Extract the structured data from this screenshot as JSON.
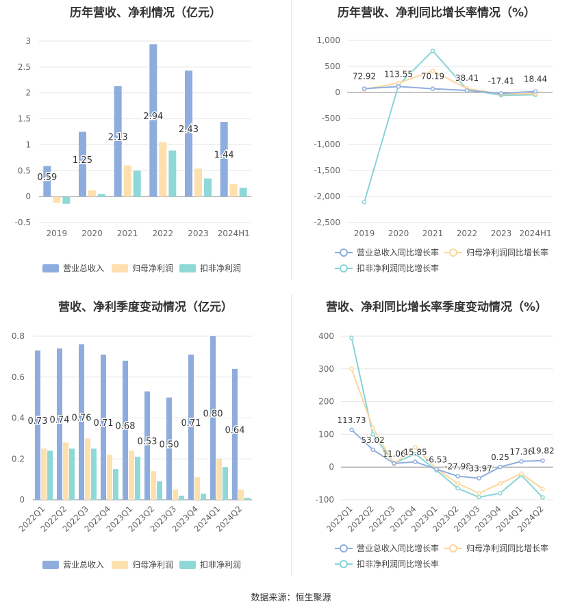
{
  "source_text": "数据来源：恒生聚源",
  "colors": {
    "revenue": "#8eadde",
    "net": "#fde0ae",
    "deduct": "#8fd8d8",
    "revenue_line": "#8eadde",
    "net_line": "#fdd69a",
    "deduct_line": "#86d4d4"
  },
  "chart_data": [
    {
      "type": "bar",
      "title": "历年营收、净利情况（亿元）",
      "categories": [
        "2019",
        "2020",
        "2021",
        "2022",
        "2023",
        "2024H1"
      ],
      "ylim": [
        -0.5,
        3
      ],
      "yticks": [
        "-0.5",
        "0",
        "0.5",
        "1",
        "1.5",
        "2",
        "2.5",
        "3"
      ],
      "series": [
        {
          "name": "营业总收入",
          "values": [
            0.59,
            1.25,
            2.13,
            2.94,
            2.43,
            1.44
          ],
          "labels": [
            "0.59",
            "1.25",
            "2.13",
            "2.94",
            "2.43",
            "1.44"
          ]
        },
        {
          "name": "归母净利润",
          "values": [
            -0.12,
            0.12,
            0.6,
            1.05,
            0.54,
            0.24
          ]
        },
        {
          "name": "扣非净利润",
          "values": [
            -0.14,
            0.05,
            0.5,
            0.89,
            0.35,
            0.17
          ]
        }
      ],
      "legend": "bottom",
      "grid": true
    },
    {
      "type": "line",
      "title": "历年营收、净利同比增长率情况（%）",
      "categories": [
        "2019",
        "2020",
        "2021",
        "2022",
        "2023",
        "2024H1"
      ],
      "ylim": [
        -2500,
        1000
      ],
      "yticks": [
        "-2,500",
        "-2,000",
        "-1,500",
        "-1,000",
        "-500",
        "0",
        "500",
        "1,000"
      ],
      "series": [
        {
          "name": "营业总收入同比增长率",
          "values": [
            72.92,
            113.55,
            70.19,
            38.41,
            -17.41,
            18.44
          ],
          "labels": [
            "72.92",
            "113.55",
            "70.19",
            "38.41",
            "-17.41",
            "18.44"
          ]
        },
        {
          "name": "归母净利润同比增长率",
          "values": [
            60,
            180,
            415,
            75,
            -30,
            -25
          ]
        },
        {
          "name": "扣非净利润同比增长率",
          "values": [
            -2110,
            140,
            800,
            55,
            -55,
            -45
          ]
        }
      ],
      "legend": "bottom",
      "grid": true
    },
    {
      "type": "bar",
      "title": "营收、净利季度变动情况（亿元）",
      "categories": [
        "2022Q1",
        "2022Q2",
        "2022Q3",
        "2022Q4",
        "2023Q1",
        "2023Q2",
        "2023Q3",
        "2023Q4",
        "2024Q1",
        "2024Q2"
      ],
      "ylim": [
        0,
        0.8
      ],
      "yticks": [
        "0",
        "0.2",
        "0.4",
        "0.6",
        "0.8"
      ],
      "series": [
        {
          "name": "营业总收入",
          "values": [
            0.73,
            0.74,
            0.76,
            0.71,
            0.68,
            0.53,
            0.5,
            0.71,
            0.8,
            0.64
          ],
          "labels": [
            "0.73",
            "0.74",
            "0.76",
            "0.71",
            "0.68",
            "0.53",
            "0.50",
            "0.71",
            "0.80",
            "0.64"
          ]
        },
        {
          "name": "归母净利润",
          "values": [
            0.25,
            0.28,
            0.3,
            0.22,
            0.24,
            0.14,
            0.05,
            0.11,
            0.2,
            0.05
          ]
        },
        {
          "name": "扣非净利润",
          "values": [
            0.24,
            0.25,
            0.25,
            0.15,
            0.21,
            0.09,
            0.02,
            0.03,
            0.16,
            0.01
          ]
        }
      ],
      "legend": "bottom",
      "grid": true
    },
    {
      "type": "line",
      "title": "营收、净利同比增长率季度变动情况（%）",
      "categories": [
        "2022Q1",
        "2022Q2",
        "2022Q3",
        "2022Q4",
        "2023Q1",
        "2023Q2",
        "2023Q3",
        "2023Q4",
        "2024Q1",
        "2024Q2"
      ],
      "ylim": [
        -100,
        400
      ],
      "yticks": [
        "-100",
        "0",
        "100",
        "200",
        "300",
        "400"
      ],
      "series": [
        {
          "name": "营业总收入同比增长率",
          "values": [
            113.73,
            53.02,
            11.06,
            15.85,
            -6.53,
            -27.98,
            -33.97,
            0.25,
            17.36,
            19.82
          ],
          "labels": [
            "113.73",
            "53.02",
            "11.06",
            "15.85",
            "-6.53",
            "-27.98",
            "-33.97",
            "0.25",
            "17.36",
            "19.82"
          ]
        },
        {
          "name": "归母净利润同比增长率",
          "values": [
            300,
            120,
            10,
            60,
            -5,
            -50,
            -80,
            -50,
            -20,
            -67
          ]
        },
        {
          "name": "扣非净利润同比增长率",
          "values": [
            395,
            100,
            12,
            40,
            -10,
            -65,
            -92,
            -80,
            -25,
            -93
          ]
        }
      ],
      "legend": "bottom",
      "grid": true
    }
  ]
}
